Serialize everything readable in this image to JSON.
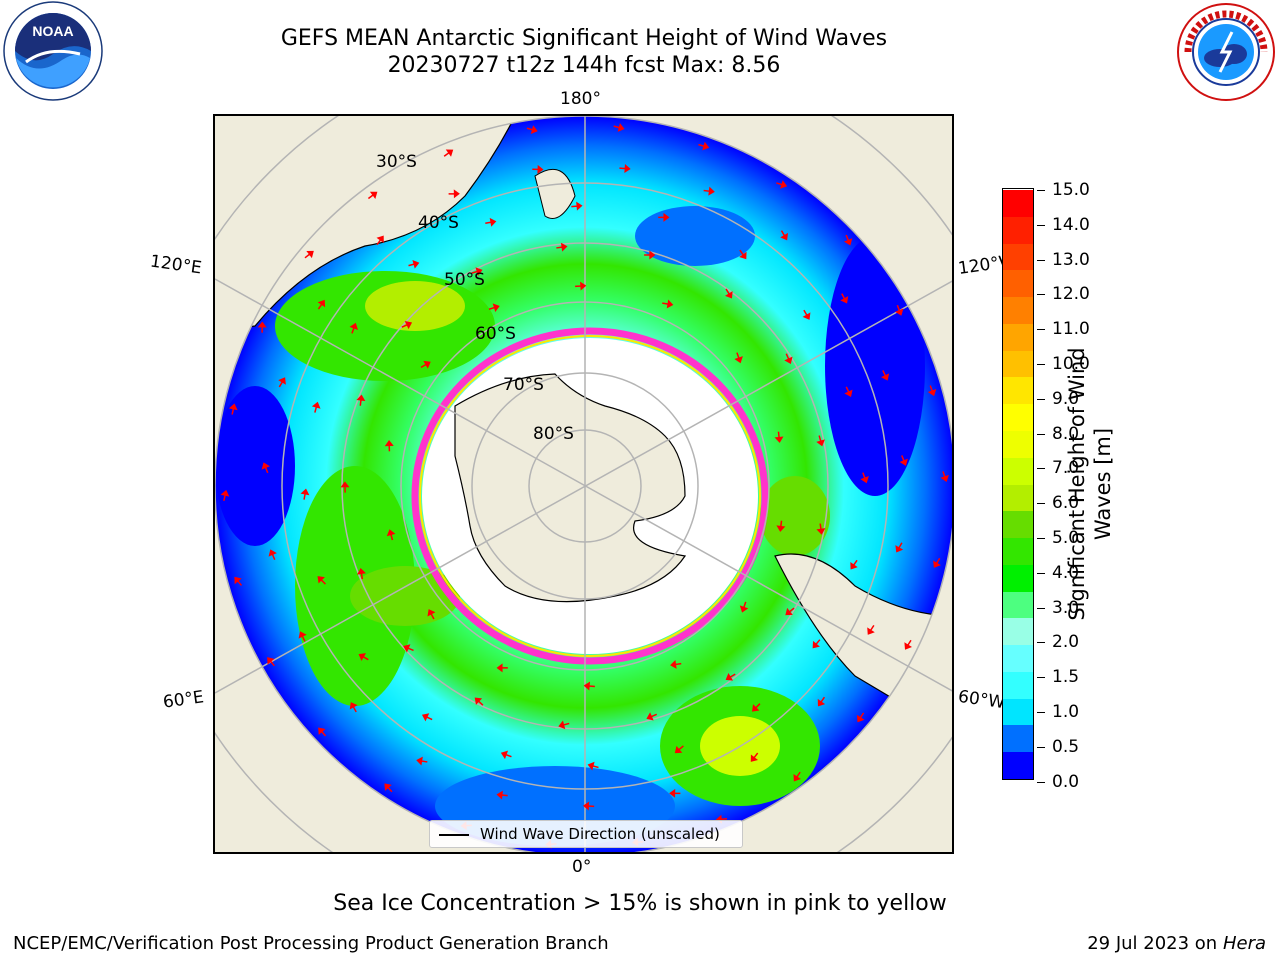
{
  "title_line1": "GEFS MEAN Antarctic Significant Height of Wind Waves",
  "title_line2": "20230727 t12z 144h fcst   Max: 8.56",
  "logos": {
    "left": {
      "name": "noaa-logo",
      "text": "NOAA",
      "ring_text": "NATIONAL OCEANIC AND ATMOSPHERIC ADMINISTRATION · U.S. DEPARTMENT OF COMMERCE"
    },
    "right": {
      "name": "nws-logo",
      "ring_text": "NATIONAL WEATHER SERVICE"
    }
  },
  "map": {
    "longitude_labels": {
      "top": "180°",
      "bottom": "0°",
      "upper_left": "120°E",
      "upper_right": "120°W",
      "lower_left": "60°E",
      "lower_right": "60°W"
    },
    "latitude_labels": [
      "30°S",
      "40°S",
      "50°S",
      "60°S",
      "70°S",
      "80°S"
    ],
    "legend_label": "Wind Wave Direction (unscaled)",
    "land_color": "#efecdc",
    "arrow_color": "#ff0000",
    "sea_ice_color": "#ff33cc"
  },
  "colorbar": {
    "title_line1": "Significant Height of Wind",
    "title_line2": "Waves [m]",
    "ticks": [
      "15.0",
      "14.0",
      "13.0",
      "12.0",
      "11.0",
      "10.0",
      "9.0",
      "8.0",
      "7.0",
      "6.0",
      "5.0",
      "4.0",
      "3.0",
      "2.0",
      "1.5",
      "1.0",
      "0.5",
      "0.0"
    ],
    "colors_bottom_to_top": [
      "#0000ff",
      "#0070ff",
      "#00e5ff",
      "#33ffff",
      "#66ffff",
      "#99ffe6",
      "#4dff80",
      "#00f000",
      "#33e600",
      "#66dd00",
      "#b3ee00",
      "#ccff00",
      "#eeff00",
      "#ffff00",
      "#ffe600",
      "#ffc000",
      "#ffa500",
      "#ff8000",
      "#ff6000",
      "#ff4000",
      "#ff2000",
      "#ff0000"
    ]
  },
  "sea_ice_note": "Sea Ice Concentration > 15% is shown in pink to yellow",
  "footer": {
    "left": "NCEP/EMC/Verification Post Processing Product Generation Branch",
    "right_prefix": "29 Jul 2023 on ",
    "right_italic": "Hera"
  }
}
